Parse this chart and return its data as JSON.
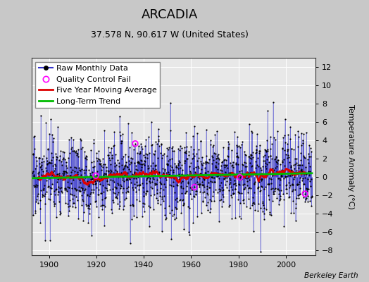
{
  "title": "ARCADIA",
  "subtitle": "37.578 N, 90.617 W (United States)",
  "ylabel": "Temperature Anomaly (°C)",
  "attribution": "Berkeley Earth",
  "year_start": 1893,
  "year_end": 2011,
  "ylim": [
    -8.5,
    13
  ],
  "yticks": [
    -8,
    -6,
    -4,
    -2,
    0,
    2,
    4,
    6,
    8,
    10,
    12
  ],
  "xticks": [
    1900,
    1920,
    1940,
    1960,
    1980,
    2000
  ],
  "bg_color": "#c8c8c8",
  "plot_bg_color": "#e8e8e8",
  "raw_line_color": "#3333cc",
  "raw_dot_color": "#000000",
  "qc_fail_color": "#ff00ff",
  "moving_avg_color": "#dd0000",
  "trend_color": "#00bb00",
  "legend_bg": "#ffffff",
  "grid_color": "#ffffff",
  "title_fontsize": 13,
  "subtitle_fontsize": 9,
  "axis_fontsize": 8,
  "tick_fontsize": 8,
  "legend_fontsize": 8
}
